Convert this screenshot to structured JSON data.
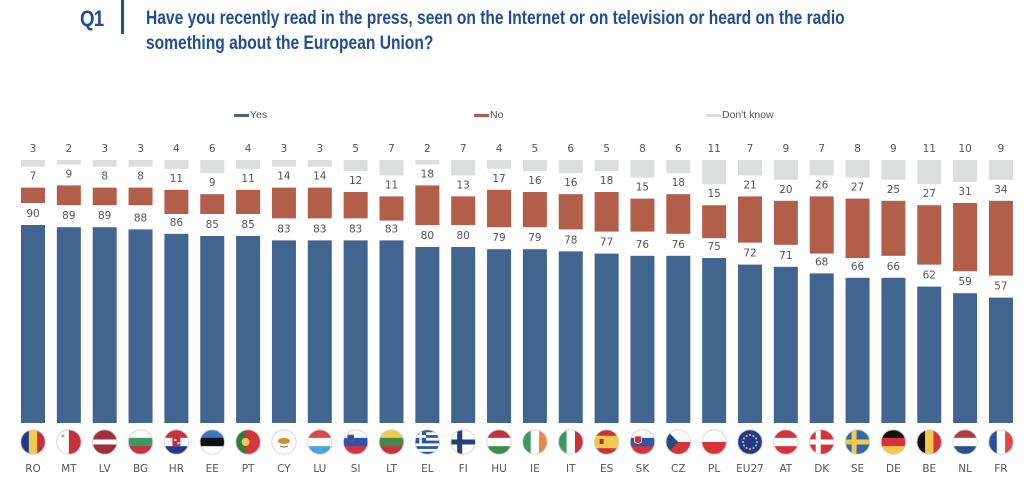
{
  "header": {
    "question_number": "Q1",
    "question_text": "Have you recently read in the press, seen on the Internet or on television or heard on the radio something about the European Union?"
  },
  "colors": {
    "yes": "#41658f",
    "no": "#b15f4b",
    "dont_know": "#dcdddd",
    "title": "#1f4e96",
    "label": "#555555"
  },
  "chart_data": {
    "type": "bar",
    "title": "Have you recently read in the press, seen on the Internet or on television or heard on the radio something about the European Union?",
    "xlabel": "",
    "ylabel": "",
    "ylim": [
      0,
      100
    ],
    "grid": false,
    "legend_position": "top",
    "legend": [
      "Yes",
      "No",
      "Don't know"
    ],
    "categories": [
      "RO",
      "MT",
      "LV",
      "BG",
      "HR",
      "EE",
      "PT",
      "CY",
      "LU",
      "SI",
      "LT",
      "EL",
      "FI",
      "HU",
      "IE",
      "IT",
      "ES",
      "SK",
      "CZ",
      "PL",
      "EU27",
      "AT",
      "DK",
      "SE",
      "DE",
      "BE",
      "NL",
      "FR"
    ],
    "series": [
      {
        "name": "Yes",
        "values": [
          90,
          89,
          89,
          88,
          86,
          85,
          85,
          83,
          83,
          83,
          83,
          80,
          80,
          79,
          79,
          78,
          77,
          76,
          76,
          75,
          72,
          71,
          68,
          66,
          66,
          62,
          59,
          57
        ]
      },
      {
        "name": "No",
        "values": [
          7,
          9,
          8,
          8,
          11,
          9,
          11,
          14,
          14,
          12,
          11,
          18,
          13,
          17,
          16,
          16,
          18,
          15,
          18,
          15,
          21,
          20,
          26,
          27,
          25,
          27,
          31,
          34
        ]
      },
      {
        "name": "Don't know",
        "values": [
          3,
          2,
          3,
          3,
          4,
          6,
          4,
          3,
          3,
          5,
          7,
          2,
          7,
          4,
          5,
          6,
          5,
          8,
          6,
          11,
          7,
          9,
          7,
          8,
          9,
          11,
          10,
          9
        ]
      }
    ]
  }
}
